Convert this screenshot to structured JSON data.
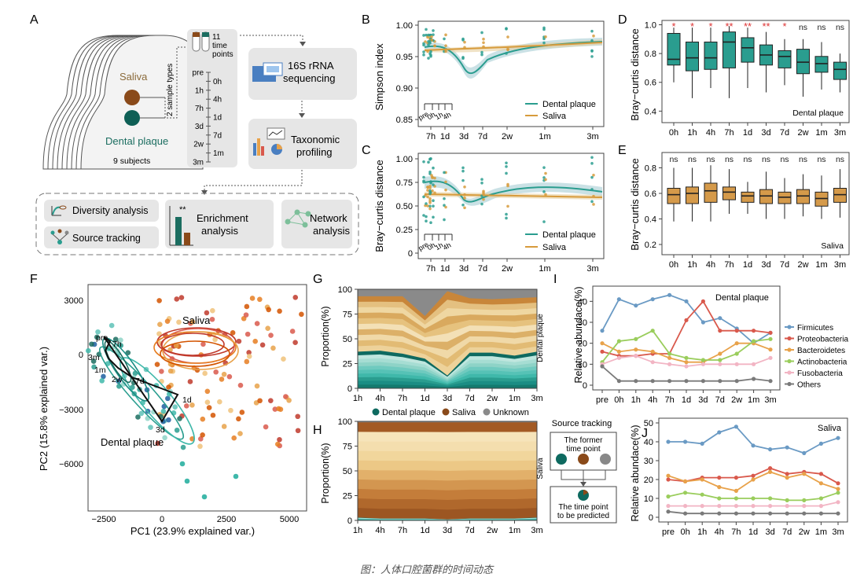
{
  "caption": "图：人体口腔菌群的时间动态",
  "colors": {
    "plaque": "#1b8d84",
    "plaque_dark": "#0e6a60",
    "saliva": "#d79b3c",
    "saliva_dark": "#8a4a1a",
    "unknown": "#8a8a8a",
    "box_plaque": "#2a9d8f",
    "box_saliva": "#d59a4a",
    "star": "#d33"
  },
  "panelA": {
    "letter": "A",
    "saliva_label": "Saliva",
    "plaque_label": "Dental plaque",
    "subjects_label": "9 subjects",
    "sample_types_label": "2 sample types",
    "timepoints_label": "11 time points",
    "timeline": [
      "pre",
      "0h",
      "1h",
      "4h",
      "7h",
      "1d",
      "3d",
      "7d",
      "2w",
      "1m",
      "3m"
    ],
    "sequencing_label": "16S rRNA sequencing",
    "profiling_label": "Taxonomic profiling",
    "diversity_label": "Diversity analysis",
    "source_label": "Source tracking",
    "enrichment_label": "Enrichment analysis",
    "enrichment_stars": "**",
    "network_label": "Network analysis"
  },
  "panelB": {
    "letter": "B",
    "ylabel": "Simpson index",
    "yticks": [
      "0.85",
      "0.90",
      "0.95",
      "1.00"
    ],
    "xticks": [
      "7h",
      "1d",
      "3d",
      "7d",
      "2w",
      "1m",
      "3m"
    ],
    "inset_ticks": [
      "pre",
      "0h",
      "1h",
      "4h"
    ],
    "legend": [
      "Dental plaque",
      "Saliva"
    ]
  },
  "panelC": {
    "letter": "C",
    "ylabel": "Bray−curtis distance",
    "yticks": [
      "0",
      "0.25",
      "0.50",
      "0.75",
      "1.00"
    ],
    "xticks": [
      "7h",
      "1d",
      "3d",
      "7d",
      "2w",
      "1m",
      "3m"
    ],
    "inset_ticks": [
      "pre",
      "0h",
      "1h",
      "4h"
    ],
    "legend": [
      "Dental plaque",
      "Saliva"
    ]
  },
  "panelD": {
    "letter": "D",
    "ylabel": "Bray−curtis distance",
    "yticks": [
      "0.4",
      "0.6",
      "0.8",
      "1.0"
    ],
    "categories": [
      "0h",
      "1h",
      "4h",
      "7h",
      "1d",
      "3d",
      "7d",
      "2w",
      "1m",
      "3m"
    ],
    "sig": [
      "*",
      "*",
      "*",
      "**",
      "**",
      "**",
      "*",
      "ns",
      "ns",
      "ns"
    ],
    "tag": "Dental plaque",
    "boxes": [
      {
        "q1": 0.72,
        "med": 0.76,
        "q3": 0.94,
        "lo": 0.6,
        "hi": 0.98
      },
      {
        "q1": 0.68,
        "med": 0.77,
        "q3": 0.88,
        "lo": 0.49,
        "hi": 0.98
      },
      {
        "q1": 0.69,
        "med": 0.77,
        "q3": 0.88,
        "lo": 0.56,
        "hi": 0.98
      },
      {
        "q1": 0.7,
        "med": 0.88,
        "q3": 0.95,
        "lo": 0.49,
        "hi": 0.99
      },
      {
        "q1": 0.74,
        "med": 0.84,
        "q3": 0.91,
        "lo": 0.56,
        "hi": 0.98
      },
      {
        "q1": 0.72,
        "med": 0.79,
        "q3": 0.86,
        "lo": 0.53,
        "hi": 0.95
      },
      {
        "q1": 0.7,
        "med": 0.78,
        "q3": 0.82,
        "lo": 0.58,
        "hi": 0.9
      },
      {
        "q1": 0.66,
        "med": 0.74,
        "q3": 0.83,
        "lo": 0.5,
        "hi": 0.9
      },
      {
        "q1": 0.67,
        "med": 0.73,
        "q3": 0.78,
        "lo": 0.55,
        "hi": 0.88
      },
      {
        "q1": 0.62,
        "med": 0.69,
        "q3": 0.74,
        "lo": 0.53,
        "hi": 0.8
      }
    ]
  },
  "panelE": {
    "letter": "E",
    "ylabel": "Bray−curtis distance",
    "yticks": [
      "0.2",
      "0.4",
      "0.6",
      "0.8"
    ],
    "categories": [
      "0h",
      "1h",
      "4h",
      "7h",
      "1d",
      "3d",
      "7d",
      "2w",
      "1m",
      "3m"
    ],
    "sig": [
      "ns",
      "ns",
      "ns",
      "ns",
      "ns",
      "ns",
      "ns",
      "ns",
      "ns",
      "ns"
    ],
    "tag": "Saliva",
    "boxes": [
      {
        "q1": 0.52,
        "med": 0.59,
        "q3": 0.64,
        "lo": 0.38,
        "hi": 0.8
      },
      {
        "q1": 0.52,
        "med": 0.6,
        "q3": 0.65,
        "lo": 0.38,
        "hi": 0.8
      },
      {
        "q1": 0.53,
        "med": 0.62,
        "q3": 0.68,
        "lo": 0.38,
        "hi": 0.82
      },
      {
        "q1": 0.55,
        "med": 0.61,
        "q3": 0.65,
        "lo": 0.44,
        "hi": 0.79
      },
      {
        "q1": 0.53,
        "med": 0.58,
        "q3": 0.61,
        "lo": 0.44,
        "hi": 0.69
      },
      {
        "q1": 0.52,
        "med": 0.58,
        "q3": 0.63,
        "lo": 0.4,
        "hi": 0.77
      },
      {
        "q1": 0.52,
        "med": 0.57,
        "q3": 0.61,
        "lo": 0.4,
        "hi": 0.72
      },
      {
        "q1": 0.52,
        "med": 0.58,
        "q3": 0.63,
        "lo": 0.42,
        "hi": 0.75
      },
      {
        "q1": 0.5,
        "med": 0.56,
        "q3": 0.61,
        "lo": 0.4,
        "hi": 0.74
      },
      {
        "q1": 0.53,
        "med": 0.59,
        "q3": 0.64,
        "lo": 0.41,
        "hi": 0.79
      }
    ]
  },
  "panelF": {
    "letter": "F",
    "xlabel": "PC1 (23.9% explained var.)",
    "ylabel": "PC2 (15.8% explained var.)",
    "xticks": [
      "−2500",
      "0",
      "2500",
      "5000"
    ],
    "yticks": [
      "3000",
      "0",
      "−3000",
      "−6000"
    ],
    "saliva_label": "Saliva",
    "plaque_label": "Dental plaque",
    "path_labels": [
      "pre",
      "7h",
      "3m",
      "1m",
      "2w",
      "7d",
      "1d",
      "3d"
    ]
  },
  "panelG": {
    "letter": "G",
    "ylabel": "Proportion(%)",
    "yticks": [
      "0",
      "25",
      "50",
      "75",
      "100"
    ],
    "xticks": [
      "1h",
      "4h",
      "7h",
      "1d",
      "3d",
      "7d",
      "2w",
      "1m",
      "3m"
    ],
    "side_label": "Dental plaque",
    "legend": [
      "Dental plaque",
      "Saliva",
      "Unknown"
    ],
    "plaque_pct": [
      37,
      38,
      35,
      30,
      13,
      36,
      36,
      33,
      37
    ],
    "saliva_pct": [
      56,
      55,
      58,
      43,
      85,
      55,
      54,
      58,
      55
    ]
  },
  "panelH": {
    "letter": "H",
    "ylabel": "Proportion(%)",
    "yticks": [
      "0",
      "25",
      "50",
      "75",
      "100"
    ],
    "xticks": [
      "1h",
      "4h",
      "7h",
      "1d",
      "3d",
      "7d",
      "2w",
      "1m",
      "3m"
    ],
    "side_label": "Saliva",
    "plaque_pct": [
      3,
      2,
      2,
      2,
      1,
      2,
      2,
      2,
      3
    ],
    "saliva_pct": [
      96,
      97,
      97,
      97,
      98,
      97,
      97,
      97,
      96
    ],
    "source_title": "Source tracking",
    "former_label": "The former time point",
    "predicted_label": "The time point to be predicted"
  },
  "panelI": {
    "letter": "I",
    "ylabel": "Relative abundace(%)",
    "yticks": [
      "0",
      "10",
      "20",
      "30",
      "40"
    ],
    "ymax": 45,
    "categories": [
      "pre",
      "0h",
      "1h",
      "4h",
      "7h",
      "1d",
      "3d",
      "7d",
      "2w",
      "1m",
      "3m"
    ],
    "tag": "Dental plaque",
    "series": [
      {
        "name": "Firmicutes",
        "color": "#6a9ac4",
        "values": [
          26,
          41,
          38,
          41,
          43,
          40,
          30,
          32,
          27,
          20,
          25
        ]
      },
      {
        "name": "Proteobacteria",
        "color": "#d9594c",
        "values": [
          16,
          14,
          14,
          15,
          15,
          31,
          40,
          26,
          26,
          26,
          25
        ]
      },
      {
        "name": "Bacteroidetes",
        "color": "#e8a24a",
        "values": [
          20,
          16,
          17,
          16,
          13,
          11,
          11,
          15,
          20,
          20,
          17
        ]
      },
      {
        "name": "Actinobacteria",
        "color": "#9acd5c",
        "values": [
          11,
          21,
          22,
          26,
          15,
          13,
          12,
          12,
          15,
          21,
          22
        ]
      },
      {
        "name": "Fusobacteria",
        "color": "#f2b5c4",
        "values": [
          10,
          13,
          14,
          11,
          10,
          9,
          10,
          10,
          10,
          10,
          13
        ]
      },
      {
        "name": "Others",
        "color": "#7a7a7a",
        "values": [
          9,
          2,
          2,
          2,
          2,
          2,
          2,
          2,
          2,
          3,
          2
        ]
      }
    ]
  },
  "panelJ": {
    "letter": "J",
    "ylabel": "Relative abundace(%)",
    "yticks": [
      "0",
      "10",
      "20",
      "30",
      "40",
      "50"
    ],
    "ymax": 50,
    "categories": [
      "pre",
      "0h",
      "1h",
      "4h",
      "7h",
      "1d",
      "3d",
      "7d",
      "2w",
      "1m",
      "3m"
    ],
    "tag": "Saliva",
    "series": [
      {
        "name": "Firmicutes",
        "color": "#6a9ac4",
        "values": [
          40,
          40,
          39,
          45,
          48,
          38,
          36,
          37,
          34,
          39,
          42
        ]
      },
      {
        "name": "Proteobacteria",
        "color": "#d9594c",
        "values": [
          20,
          19,
          21,
          21,
          21,
          22,
          26,
          23,
          24,
          23,
          18
        ]
      },
      {
        "name": "Bacteroidetes",
        "color": "#e8a24a",
        "values": [
          22,
          19,
          20,
          16,
          14,
          20,
          24,
          21,
          23,
          18,
          15
        ]
      },
      {
        "name": "Actinobacteria",
        "color": "#9acd5c",
        "values": [
          11,
          13,
          12,
          10,
          10,
          10,
          10,
          9,
          9,
          10,
          13
        ]
      },
      {
        "name": "Fusobacteria",
        "color": "#f2b5c4",
        "values": [
          6,
          6,
          6,
          6,
          6,
          6,
          6,
          6,
          6,
          6,
          8
        ]
      },
      {
        "name": "Others",
        "color": "#7a7a7a",
        "values": [
          3,
          2,
          2,
          2,
          2,
          2,
          2,
          2,
          2,
          2,
          2
        ]
      }
    ]
  }
}
